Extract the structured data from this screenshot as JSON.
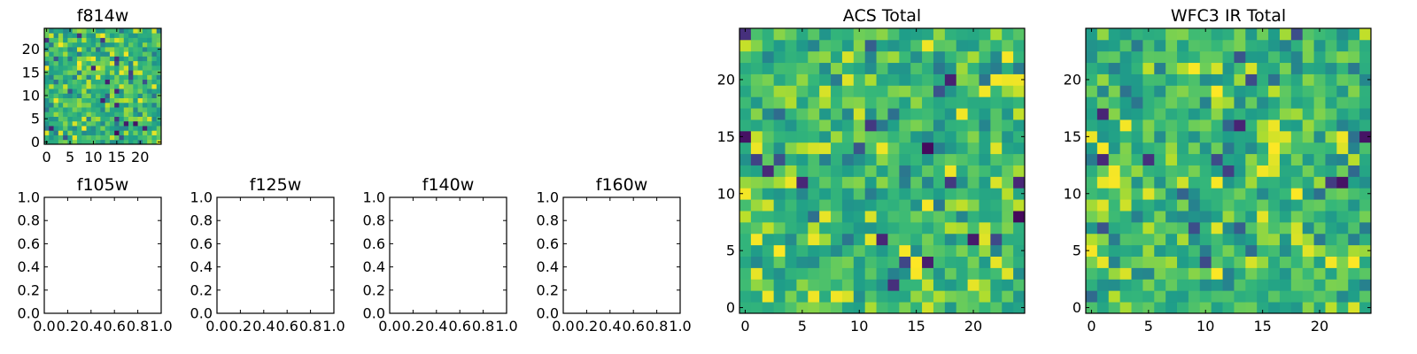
{
  "colors": {
    "axes_frame": "#000000",
    "background": "#ffffff",
    "colormap": "viridis"
  },
  "chart_data": [
    {
      "id": "f814w",
      "type": "heatmap",
      "title": "f814w",
      "grid_size": [
        25,
        25
      ],
      "xlim": [
        -0.5,
        24.5
      ],
      "ylim": [
        -0.5,
        24.5
      ],
      "xticks": [
        0,
        5,
        10,
        15,
        20
      ],
      "yticks": [
        0,
        5,
        10,
        15,
        20
      ],
      "seed": 814
    },
    {
      "id": "f105w",
      "type": "scatter",
      "title": "f105w",
      "xlim": [
        0,
        1
      ],
      "ylim": [
        0,
        1
      ],
      "xticks": [
        "0.0",
        "0.2",
        "0.4",
        "0.6",
        "0.8",
        "1.0"
      ],
      "yticks": [
        "0.0",
        "0.2",
        "0.4",
        "0.6",
        "0.8",
        "1.0"
      ],
      "series": []
    },
    {
      "id": "f125w",
      "type": "scatter",
      "title": "f125w",
      "xlim": [
        0,
        1
      ],
      "ylim": [
        0,
        1
      ],
      "xticks": [
        "0.0",
        "0.2",
        "0.4",
        "0.6",
        "0.8",
        "1.0"
      ],
      "yticks": [
        "0.0",
        "0.2",
        "0.4",
        "0.6",
        "0.8",
        "1.0"
      ],
      "series": []
    },
    {
      "id": "f140w",
      "type": "scatter",
      "title": "f140w",
      "xlim": [
        0,
        1
      ],
      "ylim": [
        0,
        1
      ],
      "xticks": [
        "0.0",
        "0.2",
        "0.4",
        "0.6",
        "0.8",
        "1.0"
      ],
      "yticks": [
        "0.0",
        "0.2",
        "0.4",
        "0.6",
        "0.8",
        "1.0"
      ],
      "series": []
    },
    {
      "id": "f160w",
      "type": "scatter",
      "title": "f160w",
      "xlim": [
        0,
        1
      ],
      "ylim": [
        0,
        1
      ],
      "xticks": [
        "0.0",
        "0.2",
        "0.4",
        "0.6",
        "0.8",
        "1.0"
      ],
      "yticks": [
        "0.0",
        "0.2",
        "0.4",
        "0.6",
        "0.8",
        "1.0"
      ],
      "series": []
    },
    {
      "id": "acs",
      "type": "heatmap",
      "title": "ACS Total",
      "grid_size": [
        25,
        25
      ],
      "xlim": [
        -0.5,
        24.5
      ],
      "ylim": [
        -0.5,
        24.5
      ],
      "xticks": [
        0,
        5,
        10,
        15,
        20
      ],
      "yticks": [
        0,
        5,
        10,
        15,
        20
      ],
      "seed": 4242
    },
    {
      "id": "wfc3",
      "type": "heatmap",
      "title": "WFC3 IR Total",
      "grid_size": [
        25,
        25
      ],
      "xlim": [
        -0.5,
        24.5
      ],
      "ylim": [
        -0.5,
        24.5
      ],
      "xticks": [
        0,
        5,
        10,
        15,
        20
      ],
      "yticks": [
        0,
        5,
        10,
        15,
        20
      ],
      "seed": 3160
    }
  ]
}
